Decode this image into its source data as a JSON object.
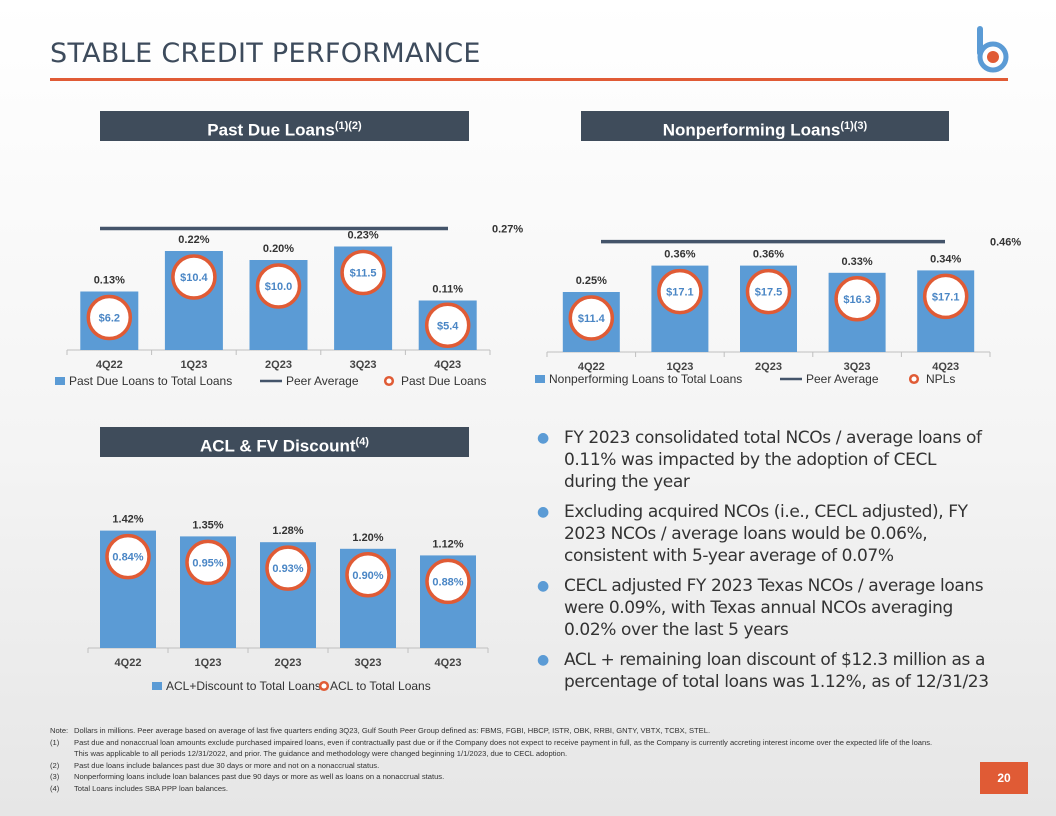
{
  "page": {
    "title": "STABLE CREDIT PERFORMANCE",
    "page_number": "20",
    "accent_color": "#e05b35"
  },
  "panels": {
    "past_due": {
      "title": "Past Due Loans",
      "sup": "(1)(2)"
    },
    "nonperforming": {
      "title": "Nonperforming Loans",
      "sup": "(1)(3)"
    },
    "acl": {
      "title": "ACL & FV Discount",
      "sup": "(4)"
    }
  },
  "chart_data": [
    {
      "type": "bar",
      "categories": [
        "4Q22",
        "1Q23",
        "2Q23",
        "3Q23",
        "4Q23"
      ],
      "series": [
        {
          "name": "Past Due Loans to Total Loans",
          "values": [
            0.13,
            0.22,
            0.2,
            0.23,
            0.11
          ],
          "labels": [
            "0.13%",
            "0.22%",
            "0.20%",
            "0.23%",
            "0.11%"
          ]
        },
        {
          "name": "Past Due Loans",
          "values": [
            6.2,
            10.4,
            10.0,
            11.5,
            5.4
          ],
          "labels": [
            "$6.2",
            "$10.4",
            "$10.0",
            "$11.5",
            "$5.4"
          ]
        }
      ],
      "peer_average": {
        "name": "Peer Average",
        "value": 0.27,
        "label": "0.27%"
      },
      "ylim": [
        0,
        0.3
      ],
      "colors": {
        "bar": "#5b9bd5",
        "line": "#44546a",
        "marker": "#e05b35"
      }
    },
    {
      "type": "bar",
      "categories": [
        "4Q22",
        "1Q23",
        "2Q23",
        "3Q23",
        "4Q23"
      ],
      "series": [
        {
          "name": "Nonperforming Loans to Total Loans",
          "values": [
            0.25,
            0.36,
            0.36,
            0.33,
            0.34
          ],
          "labels": [
            "0.25%",
            "0.36%",
            "0.36%",
            "0.33%",
            "0.34%"
          ]
        },
        {
          "name": "NPLs",
          "values": [
            11.4,
            17.1,
            17.5,
            16.3,
            17.1
          ],
          "labels": [
            "$11.4",
            "$17.1",
            "$17.5",
            "$16.3",
            "$17.1"
          ]
        }
      ],
      "peer_average": {
        "name": "Peer Average",
        "value": 0.46,
        "label": "0.46%"
      },
      "ylim": [
        0,
        0.5
      ],
      "colors": {
        "bar": "#5b9bd5",
        "line": "#44546a",
        "marker": "#e05b35"
      }
    },
    {
      "type": "bar",
      "categories": [
        "4Q22",
        "1Q23",
        "2Q23",
        "3Q23",
        "4Q23"
      ],
      "series": [
        {
          "name": "ACL+Discount to Total Loans",
          "values": [
            1.42,
            1.35,
            1.28,
            1.2,
            1.12
          ],
          "labels": [
            "1.42%",
            "1.35%",
            "1.28%",
            "1.20%",
            "1.12%"
          ]
        },
        {
          "name": "ACL to Total Loans",
          "values": [
            0.84,
            0.95,
            0.93,
            0.9,
            0.88
          ],
          "labels": [
            "0.84%",
            "0.95%",
            "0.93%",
            "0.90%",
            "0.88%"
          ]
        }
      ],
      "ylim": [
        0,
        1.5
      ],
      "colors": {
        "bar": "#5b9bd5",
        "marker": "#e05b35"
      }
    }
  ],
  "bullets": [
    "FY 2023 consolidated total NCOs / average loans of 0.11% was impacted by the adoption of CECL during the year",
    "Excluding acquired NCOs (i.e., CECL adjusted), FY 2023 NCOs / average loans would be 0.06%, consistent with 5-year average of 0.07%",
    "CECL adjusted FY 2023 Texas NCOs / average loans were 0.09%, with Texas annual NCOs averaging 0.02% over the last 5 years",
    "ACL + remaining loan discount of $12.3 million as a percentage of total loans was 1.12%, as of 12/31/23"
  ],
  "notes": [
    {
      "k": "Note:",
      "v": "Dollars in millions. Peer average based on average of last five quarters ending 3Q23, Gulf South Peer Group defined as: FBMS, FGBI, HBCP, ISTR, OBK, RRBI, GNTY, VBTX, TCBX, STEL."
    },
    {
      "k": "(1)",
      "v": "Past due and nonaccrual loan amounts exclude purchased impaired loans, even if contractually past due or if the Company does not expect to receive payment in full, as the Company is currently accreting interest income over the expected life of the loans. This was applicable to all periods 12/31/2022, and prior. The guidance and methodology were changed beginning 1/1/2023, due to CECL adoption."
    },
    {
      "k": "(2)",
      "v": "Past due loans include balances past due 30 days or more and not on a nonaccrual status."
    },
    {
      "k": "(3)",
      "v": "Nonperforming loans include loan balances past due 90 days or more as well as loans on a nonaccrual status."
    },
    {
      "k": "(4)",
      "v": "Total Loans includes SBA PPP loan balances."
    }
  ]
}
